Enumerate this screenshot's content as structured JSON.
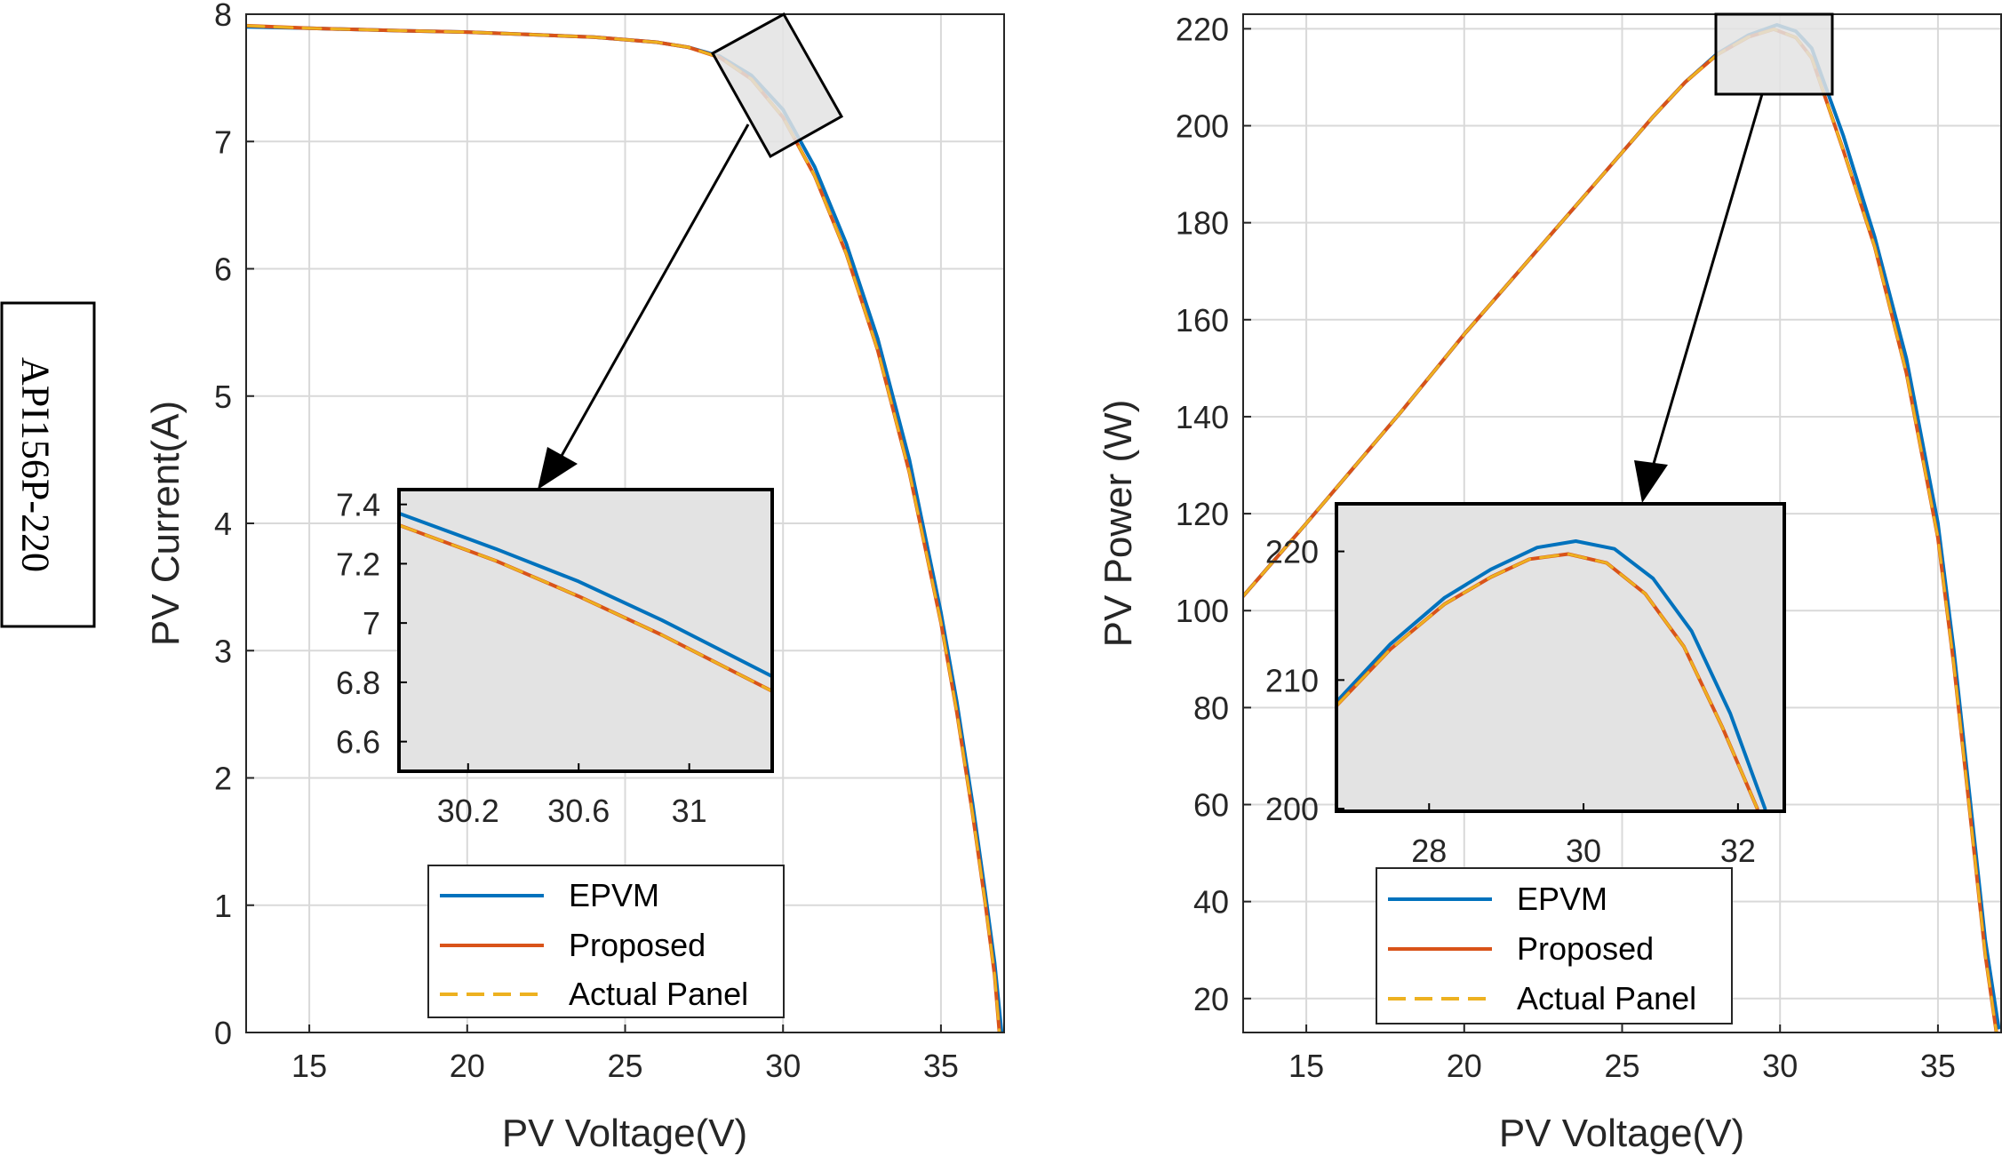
{
  "side_label": "API156P-220",
  "colors": {
    "epvm": "#0072BD",
    "proposed": "#D95319",
    "actual": "#EDB120",
    "zoom_fill": "#e3e3e3",
    "grid": "#d9d9d9"
  },
  "chart_data": [
    {
      "type": "line",
      "id": "iv",
      "xlabel": "PV Voltage(V)",
      "ylabel": "PV Current(A)",
      "xlim": [
        13,
        37
      ],
      "ylim": [
        0,
        8
      ],
      "xticks": [
        15,
        20,
        25,
        30,
        35
      ],
      "yticks": [
        0,
        1,
        2,
        3,
        4,
        5,
        6,
        7,
        8
      ],
      "grid": true,
      "legend": {
        "position": "bottom-center",
        "entries": [
          "EPVM",
          "Proposed",
          "Actual Panel"
        ]
      },
      "series": [
        {
          "name": "EPVM",
          "x": [
            13,
            15,
            18,
            20,
            22,
            24,
            26,
            27,
            28,
            29,
            30,
            31,
            32,
            33,
            34,
            35,
            35.5,
            36,
            36.4,
            36.7,
            36.92
          ],
          "y": [
            7.9,
            7.89,
            7.87,
            7.86,
            7.84,
            7.82,
            7.78,
            7.74,
            7.67,
            7.52,
            7.25,
            6.8,
            6.2,
            5.45,
            4.5,
            3.3,
            2.6,
            1.8,
            1.1,
            0.55,
            0.0
          ]
        },
        {
          "name": "Proposed",
          "x": [
            13,
            15,
            18,
            20,
            22,
            24,
            26,
            27,
            28,
            29,
            30,
            31,
            32,
            33,
            34,
            35,
            35.5,
            36,
            36.4,
            36.7,
            36.85
          ],
          "y": [
            7.91,
            7.89,
            7.87,
            7.86,
            7.84,
            7.82,
            7.78,
            7.74,
            7.66,
            7.49,
            7.19,
            6.73,
            6.12,
            5.36,
            4.4,
            3.22,
            2.52,
            1.72,
            1.02,
            0.45,
            0.0
          ]
        },
        {
          "name": "Actual Panel",
          "x": [
            13,
            15,
            18,
            20,
            22,
            24,
            26,
            27,
            28,
            29,
            30,
            31,
            32,
            33,
            34,
            35,
            35.5,
            36,
            36.4,
            36.7,
            36.85
          ],
          "y": [
            7.91,
            7.89,
            7.87,
            7.86,
            7.84,
            7.82,
            7.78,
            7.74,
            7.66,
            7.49,
            7.19,
            6.73,
            6.12,
            5.36,
            4.4,
            3.22,
            2.52,
            1.72,
            1.02,
            0.45,
            0.0
          ]
        }
      ],
      "inset": {
        "xlim": [
          29.95,
          31.3
        ],
        "ylim": [
          6.5,
          7.45
        ],
        "xticks": [
          30.2,
          30.6,
          31
        ],
        "xticklabels": [
          "30.2",
          "30.6",
          "31"
        ],
        "yticks": [
          6.6,
          6.8,
          7.0,
          7.2,
          7.4
        ],
        "yticklabels": [
          "6.6",
          "6.8",
          "7",
          "7.2",
          "7.4"
        ],
        "series": [
          {
            "name": "EPVM",
            "x": [
              29.95,
              30.3,
              30.6,
              30.9,
              31.3
            ],
            "y": [
              7.37,
              7.25,
              7.14,
              7.01,
              6.82
            ]
          },
          {
            "name": "Proposed",
            "x": [
              29.95,
              30.3,
              30.6,
              30.9,
              31.3
            ],
            "y": [
              7.33,
              7.21,
              7.09,
              6.96,
              6.77
            ]
          },
          {
            "name": "Actual Panel",
            "x": [
              29.95,
              30.3,
              30.6,
              30.9,
              31.3
            ],
            "y": [
              7.33,
              7.21,
              7.09,
              6.96,
              6.77
            ]
          }
        ]
      }
    },
    {
      "type": "line",
      "id": "pv",
      "xlabel": "PV Voltage(V)",
      "ylabel": "PV Power (W)",
      "xlim": [
        13,
        37
      ],
      "ylim": [
        13,
        223
      ],
      "xticks": [
        15,
        20,
        25,
        30,
        35
      ],
      "yticks": [
        20,
        40,
        60,
        80,
        100,
        120,
        140,
        160,
        180,
        200,
        220
      ],
      "grid": true,
      "legend": {
        "position": "bottom-center",
        "entries": [
          "EPVM",
          "Proposed",
          "Actual Panel"
        ]
      },
      "series": [
        {
          "name": "EPVM",
          "x": [
            13,
            15,
            18,
            20,
            22,
            24,
            26,
            27,
            28,
            29,
            29.9,
            30.5,
            31,
            32,
            33,
            34,
            35,
            35.5,
            36,
            36.5,
            36.92
          ],
          "y": [
            103,
            118,
            141,
            157,
            172,
            187,
            202,
            209,
            214.8,
            218.7,
            220.8,
            219.5,
            216,
            198,
            177,
            152,
            118,
            92,
            62,
            32,
            14
          ]
        },
        {
          "name": "Proposed",
          "x": [
            13,
            15,
            18,
            20,
            22,
            24,
            26,
            27,
            28,
            29,
            29.8,
            30.5,
            31,
            32,
            33,
            34,
            35,
            35.5,
            36,
            36.5,
            36.85
          ],
          "y": [
            103,
            118,
            141,
            157,
            172,
            187,
            202,
            209,
            214.6,
            218.3,
            219.9,
            218.2,
            214,
            195,
            175,
            149,
            115,
            89,
            59,
            29,
            13
          ]
        },
        {
          "name": "Actual Panel",
          "x": [
            13,
            15,
            18,
            20,
            22,
            24,
            26,
            27,
            28,
            29,
            29.8,
            30.5,
            31,
            32,
            33,
            34,
            35,
            35.5,
            36,
            36.5,
            36.85
          ],
          "y": [
            103,
            118,
            141,
            157,
            172,
            187,
            202,
            209,
            214.6,
            218.3,
            219.9,
            218.2,
            214,
            195,
            175,
            149,
            115,
            89,
            59,
            29,
            13
          ]
        }
      ],
      "inset": {
        "xlim": [
          26.8,
          32.6
        ],
        "ylim": [
          199.8,
          223.7
        ],
        "xticks": [
          28,
          30,
          32
        ],
        "xticklabels": [
          "28",
          "30",
          "32"
        ],
        "yticks": [
          200,
          210,
          220
        ],
        "yticklabels": [
          "200",
          "210",
          "220"
        ],
        "series": [
          {
            "name": "EPVM",
            "x": [
              26.8,
              27.5,
              28.2,
              28.8,
              29.4,
              29.9,
              30.4,
              30.9,
              31.4,
              31.9,
              32.35
            ],
            "y": [
              208.3,
              212.8,
              216.4,
              218.6,
              220.3,
              220.8,
              220.2,
              217.9,
              213.8,
              207.4,
              200.0
            ]
          },
          {
            "name": "Proposed",
            "x": [
              26.8,
              27.5,
              28.2,
              28.8,
              29.3,
              29.8,
              30.3,
              30.8,
              31.3,
              31.8,
              32.25
            ],
            "y": [
              208.0,
              212.4,
              215.9,
              218.0,
              219.4,
              219.8,
              219.1,
              216.7,
              212.6,
              206.3,
              200.0
            ]
          },
          {
            "name": "Actual Panel",
            "x": [
              26.8,
              27.5,
              28.2,
              28.8,
              29.3,
              29.8,
              30.3,
              30.8,
              31.3,
              31.8,
              32.25
            ],
            "y": [
              208.0,
              212.4,
              215.9,
              218.0,
              219.4,
              219.8,
              219.1,
              216.7,
              212.6,
              206.3,
              200.0
            ]
          }
        ]
      }
    }
  ]
}
